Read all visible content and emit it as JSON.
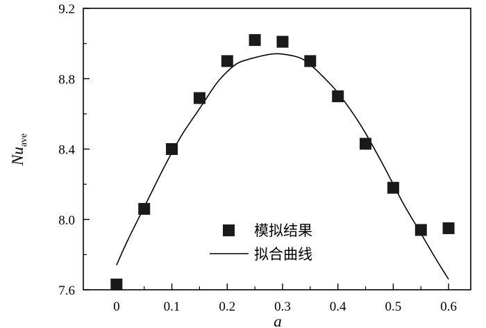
{
  "chart_data": {
    "type": "scatter",
    "xlabel": "a",
    "ylabel": {
      "main": "Nu",
      "subscript": "ave"
    },
    "xlim": [
      -0.06,
      0.64
    ],
    "ylim": [
      7.6,
      9.2
    ],
    "xticks": [
      0,
      0.1,
      0.2,
      0.3,
      0.4,
      0.5,
      0.6
    ],
    "xtick_labels": [
      "0",
      "0.1",
      "0.2",
      "0.3",
      "0.4",
      "0.5",
      "0.6"
    ],
    "yticks": [
      7.6,
      8.0,
      8.4,
      8.8,
      9.2
    ],
    "ytick_labels": [
      "7.6",
      "8.0",
      "8.4",
      "8.8",
      "9.2"
    ],
    "grid": false,
    "legend_position": "bottom-center",
    "series": [
      {
        "name": "模拟结果",
        "style": "square-marker",
        "x": [
          0,
          0.05,
          0.1,
          0.15,
          0.2,
          0.25,
          0.3,
          0.35,
          0.4,
          0.45,
          0.5,
          0.55,
          0.6
        ],
        "y": [
          7.63,
          8.06,
          8.4,
          8.69,
          8.9,
          9.02,
          9.01,
          8.9,
          8.7,
          8.43,
          8.18,
          7.94,
          7.95
        ]
      },
      {
        "name": "拟合曲线",
        "style": "line",
        "x": [
          0,
          0.02,
          0.05,
          0.08,
          0.1,
          0.12,
          0.15,
          0.18,
          0.2,
          0.22,
          0.25,
          0.28,
          0.3,
          0.33,
          0.35,
          0.38,
          0.4,
          0.43,
          0.45,
          0.48,
          0.5,
          0.52,
          0.55,
          0.58,
          0.6
        ],
        "y": [
          7.74,
          7.88,
          8.07,
          8.26,
          8.38,
          8.49,
          8.63,
          8.77,
          8.84,
          8.89,
          8.92,
          8.94,
          8.94,
          8.92,
          8.88,
          8.79,
          8.72,
          8.59,
          8.49,
          8.32,
          8.2,
          8.08,
          7.92,
          7.76,
          7.66
        ]
      }
    ]
  },
  "colors": {
    "marker": "#1a1a1a",
    "line": "#000000",
    "axis": "#000000"
  }
}
